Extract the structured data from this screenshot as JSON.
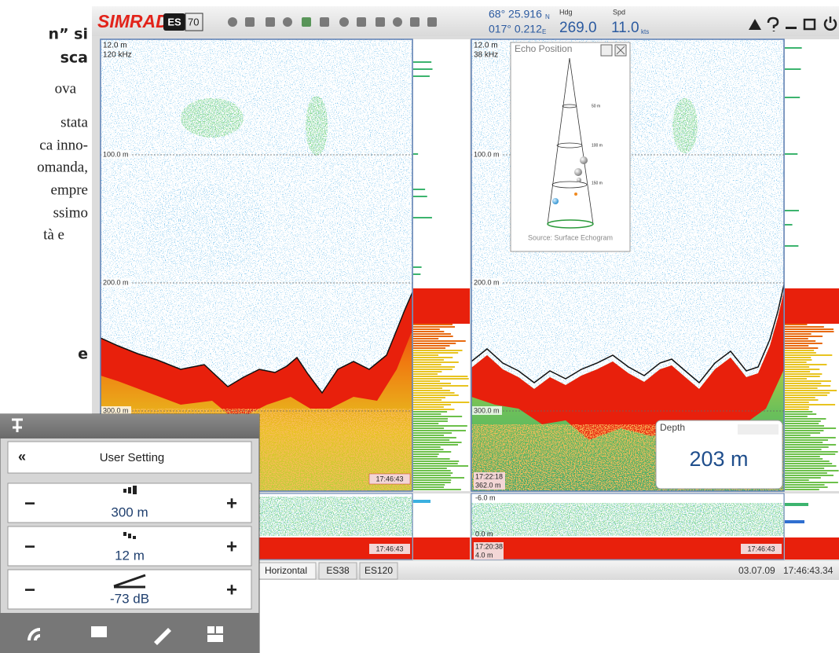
{
  "article": {
    "lines": [
      "n” si",
      "sca",
      "ova",
      "stata",
      "ca inno-",
      "omanda,",
      "empre",
      "ssimo",
      "tà e",
      "e"
    ]
  },
  "toolbar": {
    "brand": "SIMRAD",
    "model": "ES",
    "model_number": "70",
    "latitude": "68° 25.916",
    "lat_hemisphere": "N",
    "longitude": "017° 0.212",
    "lon_hemisphere": "E",
    "heading_label": "Hdg",
    "heading": "269.0",
    "speed_label": "Spd",
    "speed": "11.0",
    "speed_unit": "kts"
  },
  "echograms": [
    {
      "top_depth": "12.0 m",
      "frequency": "120 kHz",
      "depth_marks": [
        "100.0 m",
        "200.0 m",
        "300.0 m"
      ],
      "time": "17:46:43",
      "strip_time": "17:46:43"
    },
    {
      "top_depth": "12.0 m",
      "frequency": "38 kHz",
      "depth_marks": [
        "100.0 m",
        "200.0 m",
        "300.0 m"
      ],
      "start_time": "17:22:18",
      "bottom_depth": "362.0 m",
      "strip_top": "-6.0 m",
      "strip_zero": "0.0 m",
      "strip_start_time": "17:20:38",
      "strip_depth": "4.0 m",
      "strip_time": "17:46:43"
    }
  ],
  "echo_position": {
    "title": "Echo Position",
    "ranges": [
      "50 m",
      "100 m",
      "150 m"
    ],
    "source": "Source: Surface Echogram"
  },
  "depth_window": {
    "title": "Depth",
    "value": "203 m"
  },
  "status_bar": {
    "tabs": [
      "Horizontal",
      "ES38",
      "ES120"
    ],
    "date": "03.07.09",
    "time": "17:46:43.34"
  },
  "user_panel": {
    "back": "«",
    "title": "User Setting",
    "controls": [
      {
        "minus": "−",
        "value": "300 m",
        "plus": "+"
      },
      {
        "minus": "−",
        "value": "12 m",
        "plus": "+"
      },
      {
        "minus": "−",
        "value": "-73 dB",
        "plus": "+"
      }
    ]
  }
}
